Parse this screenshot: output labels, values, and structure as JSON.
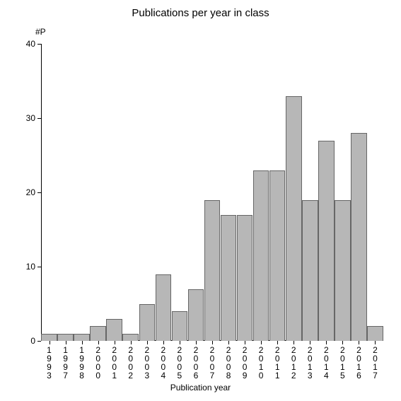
{
  "chart": {
    "type": "bar",
    "title": "Publications per year in class",
    "title_fontsize": 15,
    "x_label": "Publication year",
    "y_label": "#P",
    "label_fontsize": 12,
    "background_color": "#ffffff",
    "bar_color": "#b7b7b7",
    "bar_border_color": "#666666",
    "axis_color": "#000000",
    "text_color": "#000000",
    "ylim": [
      0,
      40
    ],
    "ytick_step": 10,
    "y_ticks": [
      0,
      10,
      20,
      30,
      40
    ],
    "bar_width": 0.98,
    "categories": [
      "1993",
      "1997",
      "1998",
      "2000",
      "2001",
      "2002",
      "2003",
      "2004",
      "2005",
      "2006",
      "2007",
      "2008",
      "2009",
      "2010",
      "2011",
      "2012",
      "2013",
      "2014",
      "2015",
      "2016",
      "2017"
    ],
    "values": [
      1,
      1,
      1,
      2,
      3,
      1,
      5,
      9,
      4,
      7,
      19,
      17,
      17,
      23,
      23,
      33,
      19,
      27,
      19,
      28,
      2
    ]
  }
}
